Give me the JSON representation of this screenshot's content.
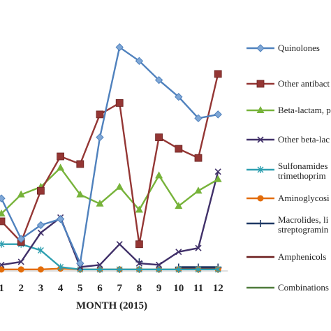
{
  "chart_data": {
    "type": "line",
    "xlabel": "MONTH (2015)",
    "ylabel": "",
    "categories": [
      "1",
      "2",
      "3",
      "4",
      "5",
      "6",
      "7",
      "8",
      "9",
      "10",
      "11",
      "12"
    ],
    "ylim": [
      0,
      300
    ],
    "grid": false,
    "legend_position": "right",
    "series": [
      {
        "name": "Quinolones",
        "color": "#4F81BD",
        "marker": "diamond",
        "values": [
          95,
          42,
          60,
          68,
          10,
          175,
          293,
          275,
          250,
          228,
          200,
          205
        ]
      },
      {
        "name": "Other antibact",
        "color": "#943634",
        "marker": "square",
        "values": [
          65,
          38,
          105,
          150,
          140,
          205,
          220,
          35,
          175,
          160,
          148,
          258
        ]
      },
      {
        "name": "Beta-lactam, p",
        "color": "#77B33A",
        "marker": "triangle",
        "values": [
          75,
          100,
          110,
          135,
          100,
          88,
          110,
          80,
          125,
          85,
          105,
          120
        ]
      },
      {
        "name": "Other beta-lac",
        "color": "#403069",
        "marker": "x",
        "values": [
          8,
          12,
          50,
          70,
          5,
          8,
          35,
          10,
          8,
          25,
          30,
          130
        ]
      },
      {
        "name": "Sulfonamides\ntrimethoprim",
        "color": "#2E9FB0",
        "marker": "asterisk",
        "values": [
          35,
          35,
          27,
          5,
          2,
          2,
          2,
          2,
          2,
          2,
          2,
          2
        ]
      },
      {
        "name": "Aminoglycosi",
        "color": "#E36C09",
        "marker": "circle",
        "values": [
          2,
          2,
          2,
          3,
          2,
          2,
          2,
          2,
          2,
          2,
          2,
          2
        ]
      },
      {
        "name": "Macrolides, li\nstreptogramin",
        "color": "#1F3864",
        "marker": "plus",
        "values": [
          null,
          null,
          null,
          null,
          null,
          null,
          null,
          12,
          null,
          5,
          5,
          5
        ]
      },
      {
        "name": "Amphenicols",
        "color": "#6B1E1E",
        "marker": "dash",
        "values": [
          null,
          null,
          null,
          null,
          null,
          null,
          null,
          null,
          null,
          4,
          4,
          4
        ]
      },
      {
        "name": "Combinations",
        "color": "#4E7A3A",
        "marker": "none",
        "values": [
          null,
          null,
          null,
          null,
          null,
          null,
          null,
          null,
          null,
          null,
          null,
          null
        ]
      }
    ]
  }
}
